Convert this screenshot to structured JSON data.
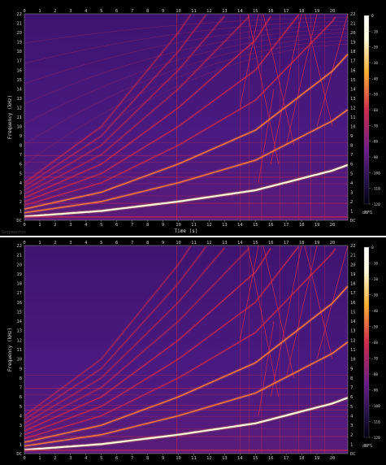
{
  "chart_data": [
    {
      "type": "heatmap",
      "variant": "spectrogram",
      "xlabel": "Time (s)",
      "ylabel": "Frequency (kHz)",
      "xlim": [
        0,
        21
      ],
      "ylim": [
        0,
        22
      ],
      "x_ticks": [
        "0",
        "1",
        "2",
        "3",
        "4",
        "5",
        "6",
        "7",
        "8",
        "9",
        "10",
        "11",
        "12",
        "13",
        "14",
        "15",
        "16",
        "17",
        "18",
        "19",
        "20"
      ],
      "y_ticks": [
        "DC",
        "1",
        "2",
        "3",
        "4",
        "5",
        "6",
        "7",
        "8",
        "9",
        "10",
        "11",
        "12",
        "13",
        "14",
        "15",
        "16",
        "17",
        "18",
        "19",
        "20",
        "21",
        "22"
      ],
      "colorbar": {
        "unit": "dBFS",
        "ticks": [
          "0",
          "-10",
          "-20",
          "-30",
          "-40",
          "-50",
          "-60",
          "-70",
          "-80",
          "-90",
          "-100",
          "-110",
          "-120"
        ]
      },
      "colors": {
        "background": "#4a1a80",
        "mid": "#d02a4a",
        "high": "#ffb030",
        "peak": "#fffde0"
      },
      "fundamental_khz": {
        "t": [
          0,
          5,
          10,
          15,
          20,
          21
        ],
        "f": [
          0.4,
          1.0,
          2.0,
          3.2,
          5.3,
          5.9
        ]
      },
      "harmonics": 10,
      "aliasing_lines": true,
      "caption": "Sorpesotes"
    },
    {
      "type": "heatmap",
      "variant": "spectrogram",
      "xlabel": "",
      "ylabel": "Frequency (kHz)",
      "xlim": [
        0,
        21
      ],
      "ylim": [
        0,
        22
      ],
      "x_ticks": [
        "0",
        "1",
        "2",
        "3",
        "4",
        "5",
        "6",
        "7",
        "8",
        "9",
        "10",
        "11",
        "12",
        "13",
        "14",
        "15",
        "16",
        "17",
        "18",
        "19",
        "20"
      ],
      "y_ticks": [
        "DC",
        "1",
        "2",
        "3",
        "4",
        "5",
        "6",
        "7",
        "8",
        "9",
        "10",
        "11",
        "12",
        "13",
        "14",
        "15",
        "16",
        "17",
        "18",
        "19",
        "20",
        "21",
        "22"
      ],
      "colorbar": {
        "unit": "dBFS",
        "ticks": [
          "0",
          "-10",
          "-20",
          "-30",
          "-40",
          "-50",
          "-60",
          "-70",
          "-80",
          "-90",
          "-100",
          "-110",
          "-120"
        ]
      },
      "colors": {
        "background": "#4a1a80",
        "mid": "#d02a4a",
        "high": "#ffb030",
        "peak": "#fffde0"
      },
      "fundamental_khz": {
        "t": [
          0,
          5,
          10,
          15,
          20,
          21
        ],
        "f": [
          0.4,
          1.0,
          2.0,
          3.2,
          5.3,
          5.9
        ]
      },
      "harmonics": 10,
      "aliasing_lines": false,
      "caption": ""
    }
  ]
}
